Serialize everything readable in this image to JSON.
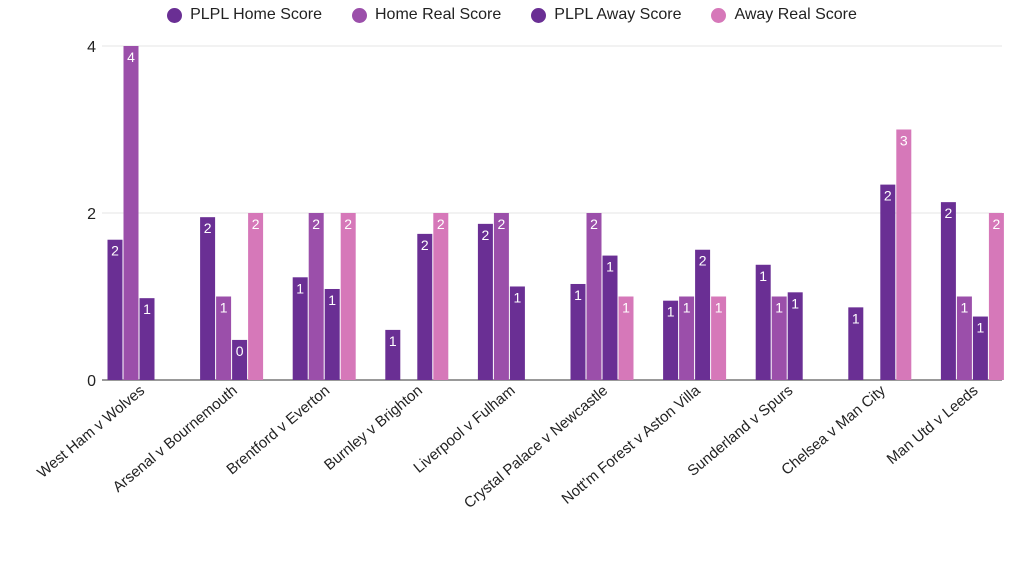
{
  "chart_data": {
    "type": "bar",
    "title": "",
    "xlabel": "",
    "ylabel": "",
    "ylim": [
      0,
      4
    ],
    "yticks": [
      0,
      2,
      4
    ],
    "grid": true,
    "legend_position": "top",
    "categories": [
      "West Ham v Wolves",
      "Arsenal v Bournemouth",
      "Brentford v Everton",
      "Burnley v Brighton",
      "Liverpool v Fulham",
      "Crystal Palace v Newcastle",
      "Nott'm Forest v Aston Villa",
      "Sunderland v Spurs",
      "Chelsea v Man City",
      "Man Utd v Leeds"
    ],
    "series": [
      {
        "name": "PLPL Home Score",
        "color": "#6a2f94",
        "values": [
          1.68,
          1.95,
          1.23,
          0.6,
          1.87,
          1.15,
          0.95,
          1.38,
          0.87,
          2.13
        ],
        "labels": [
          "2",
          "2",
          "1",
          "1",
          "2",
          "1",
          "1",
          "1",
          "1",
          "2"
        ]
      },
      {
        "name": "Home Real Score",
        "color": "#9b4faa",
        "values": [
          4,
          1,
          2,
          0,
          2,
          2,
          1,
          1,
          0,
          1
        ],
        "labels": [
          "4",
          "1",
          "2",
          "",
          "2",
          "2",
          "1",
          "1",
          "",
          "1"
        ]
      },
      {
        "name": "PLPL Away Score",
        "color": "#6a2f94",
        "values": [
          0.98,
          0.48,
          1.09,
          1.75,
          1.12,
          1.49,
          1.56,
          1.05,
          2.34,
          0.76
        ],
        "labels": [
          "1",
          "0",
          "1",
          "2",
          "1",
          "1",
          "2",
          "1",
          "2",
          "1"
        ]
      },
      {
        "name": "Away Real Score",
        "color": "#d678b9",
        "values": [
          0,
          2,
          2,
          2,
          0,
          1,
          1,
          0,
          3,
          2
        ],
        "labels": [
          "",
          "2",
          "2",
          "2",
          "",
          "1",
          "1",
          "",
          "3",
          "2"
        ]
      }
    ]
  }
}
